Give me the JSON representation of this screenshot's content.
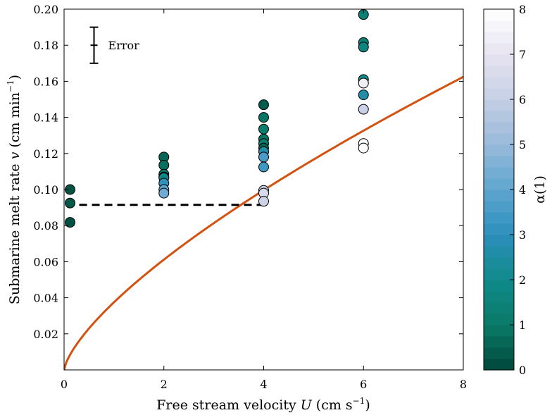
{
  "chart_data": {
    "type": "scatter",
    "xlabel_prefix": "Free stream velocity ",
    "xlabel_var": "U",
    "xlabel_units": " (cm s",
    "xlabel_exp": "−1",
    "xlabel_close": ")",
    "ylabel_prefix": "Submarine melt rate ",
    "ylabel_var": "v",
    "ylabel_units": " (cm min",
    "ylabel_exp": "−1",
    "ylabel_close": ")",
    "xlim": [
      0,
      8
    ],
    "ylim": [
      0,
      0.2
    ],
    "xticks": [
      "0",
      "2",
      "4",
      "6",
      "8"
    ],
    "yticks": [
      "0.02",
      "0.04",
      "0.06",
      "0.08",
      "0.10",
      "0.12",
      "0.14",
      "0.16",
      "0.18",
      "0.20"
    ],
    "error_bar": {
      "label": "Error",
      "x": 0.6,
      "center": 0.18,
      "half_height": 0.01
    },
    "reference_line": {
      "y": 0.0915,
      "x_start": 0.05,
      "x_end": 4,
      "style": "dashed",
      "color": "#000000"
    },
    "fit_curve": {
      "color": "#d4520f",
      "formula": "v = 0.0375 * U^0.705",
      "x_range": [
        0,
        8
      ]
    },
    "points": [
      {
        "x": 0.12,
        "y": 0.1,
        "alpha": 0.2
      },
      {
        "x": 0.12,
        "y": 0.0925,
        "alpha": 0.3
      },
      {
        "x": 0.12,
        "y": 0.0818,
        "alpha": 0.2
      },
      {
        "x": 2,
        "y": 0.118,
        "alpha": 0.6
      },
      {
        "x": 2,
        "y": 0.1135,
        "alpha": 0.8
      },
      {
        "x": 2,
        "y": 0.1085,
        "alpha": 1.2
      },
      {
        "x": 2,
        "y": 0.107,
        "alpha": 1.6
      },
      {
        "x": 2,
        "y": 0.1065,
        "alpha": 1.9
      },
      {
        "x": 2,
        "y": 0.1035,
        "alpha": 3.1
      },
      {
        "x": 2,
        "y": 0.1,
        "alpha": 4.0
      },
      {
        "x": 2,
        "y": 0.098,
        "alpha": 4.3
      },
      {
        "x": 4,
        "y": 0.147,
        "alpha": 0.4
      },
      {
        "x": 4,
        "y": 0.14,
        "alpha": 0.9
      },
      {
        "x": 4,
        "y": 0.1335,
        "alpha": 1.2
      },
      {
        "x": 4,
        "y": 0.128,
        "alpha": 0.9
      },
      {
        "x": 4,
        "y": 0.1255,
        "alpha": 1.3
      },
      {
        "x": 4,
        "y": 0.123,
        "alpha": 0.5
      },
      {
        "x": 4,
        "y": 0.121,
        "alpha": 2.7
      },
      {
        "x": 4,
        "y": 0.118,
        "alpha": 3.6
      },
      {
        "x": 4,
        "y": 0.1125,
        "alpha": 3.4
      },
      {
        "x": 4,
        "y": 0.0995,
        "alpha": 6.0
      },
      {
        "x": 4,
        "y": 0.098,
        "alpha": 6.5
      },
      {
        "x": 4,
        "y": 0.0935,
        "alpha": 6.2
      },
      {
        "x": 6,
        "y": 0.197,
        "alpha": 1.4
      },
      {
        "x": 6,
        "y": 0.1815,
        "alpha": 1.4
      },
      {
        "x": 6,
        "y": 0.179,
        "alpha": 1.7
      },
      {
        "x": 6,
        "y": 0.161,
        "alpha": 2.1
      },
      {
        "x": 6,
        "y": 0.159,
        "alpha": 7.4
      },
      {
        "x": 6,
        "y": 0.1525,
        "alpha": 2.6
      },
      {
        "x": 6,
        "y": 0.1445,
        "alpha": 6.1
      },
      {
        "x": 6,
        "y": 0.1255,
        "alpha": 8.0
      },
      {
        "x": 6,
        "y": 0.123,
        "alpha": 8.0
      }
    ],
    "colorbar": {
      "label": "α(1)",
      "range": [
        0,
        8
      ],
      "ticks": [
        "0",
        "1",
        "2",
        "3",
        "4",
        "5",
        "6",
        "7",
        "8"
      ],
      "colormap_stops": [
        "#00483a",
        "#0a7a67",
        "#0f8a8a",
        "#2d8fbb",
        "#5ea5cf",
        "#98b9da",
        "#c5cfe4",
        "#e7e4f0",
        "#ffffff"
      ]
    }
  }
}
